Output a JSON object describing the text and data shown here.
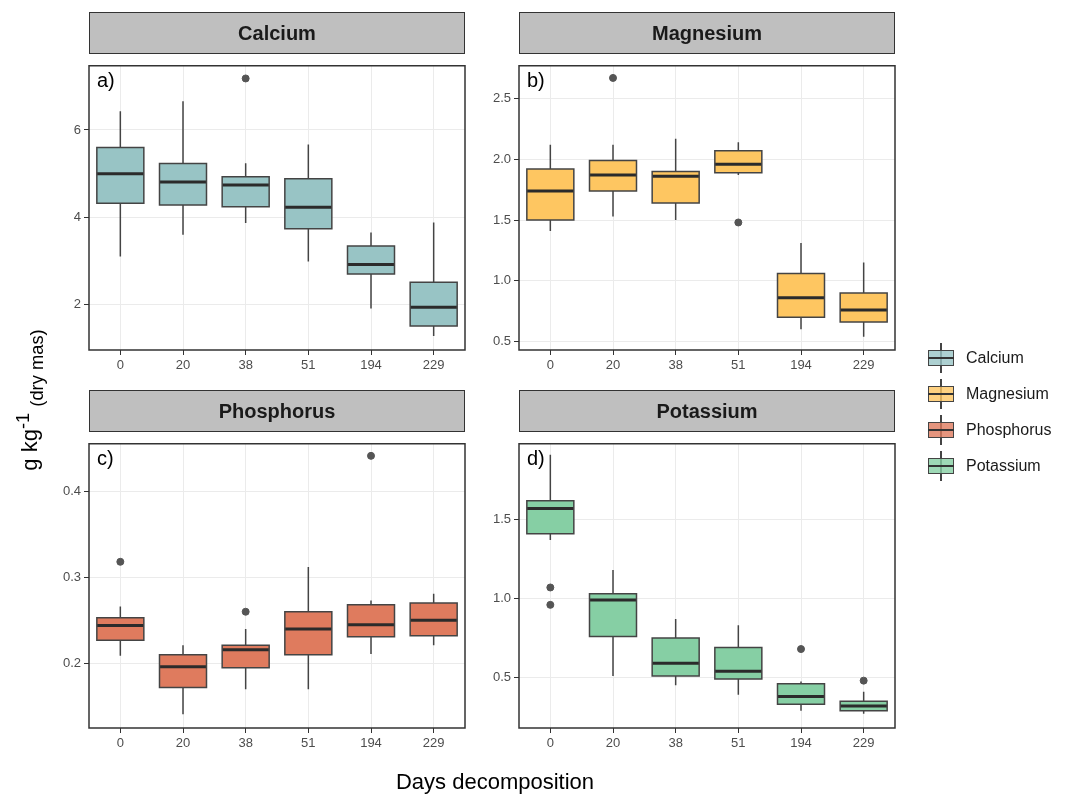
{
  "chart_data": [
    {
      "type": "box",
      "title": "Calcium",
      "annotations": [
        "a)"
      ],
      "ylabel": "g kg$^{-1}$ $_{(dry mas)}$",
      "legend": "right",
      "grid": true,
      "categories": [
        "0",
        "20",
        "38",
        "51",
        "194",
        "229"
      ],
      "ylim": [
        0.96,
        7.47
      ],
      "yticks": [
        2,
        4,
        6
      ],
      "series": [
        {
          "name": "Calcium",
          "color": "#98c4c5",
          "boxes": [
            {
              "low": 3.1,
              "q1": 4.32,
              "median": 5.0,
              "q3": 5.6,
              "high": 6.43
            },
            {
              "low": 3.6,
              "q1": 4.28,
              "median": 4.81,
              "q3": 5.23,
              "high": 6.66
            },
            {
              "low": 3.87,
              "q1": 4.24,
              "median": 4.74,
              "q3": 4.93,
              "high": 5.24,
              "outliers": [
                7.18
              ]
            },
            {
              "low": 2.99,
              "q1": 3.74,
              "median": 4.23,
              "q3": 4.88,
              "high": 5.67
            },
            {
              "low": 1.91,
              "q1": 2.7,
              "median": 2.92,
              "q3": 3.34,
              "high": 3.65
            },
            {
              "low": 1.28,
              "q1": 1.51,
              "median": 1.94,
              "q3": 2.51,
              "high": 3.88
            }
          ]
        }
      ]
    },
    {
      "type": "box",
      "title": "Magnesium",
      "annotations": [
        "b)"
      ],
      "legend": "right",
      "grid": true,
      "categories": [
        "0",
        "20",
        "38",
        "51",
        "194",
        "229"
      ],
      "ylim": [
        0.43,
        2.77
      ],
      "yticks": [
        {
          "value": 0.5,
          "label": "0.5"
        },
        {
          "value": 1,
          "label": "1.0"
        },
        {
          "value": 1.5,
          "label": "1.5"
        },
        {
          "value": 2,
          "label": "2.0"
        },
        {
          "value": 2.5,
          "label": "2.5"
        }
      ],
      "series": [
        {
          "name": "Magnesium",
          "color": "#fec661",
          "boxes": [
            {
              "low": 1.41,
              "q1": 1.5,
              "median": 1.74,
              "q3": 1.92,
              "high": 2.12
            },
            {
              "low": 1.53,
              "q1": 1.74,
              "median": 1.87,
              "q3": 1.99,
              "high": 2.12,
              "outliers": [
                2.67
              ]
            },
            {
              "low": 1.5,
              "q1": 1.64,
              "median": 1.86,
              "q3": 1.9,
              "high": 2.17
            },
            {
              "low": 1.87,
              "q1": 1.89,
              "median": 1.96,
              "q3": 2.07,
              "high": 2.14,
              "outliers": [
                1.48
              ]
            },
            {
              "low": 0.6,
              "q1": 0.7,
              "median": 0.86,
              "q3": 1.06,
              "high": 1.31
            },
            {
              "low": 0.54,
              "q1": 0.66,
              "median": 0.76,
              "q3": 0.9,
              "high": 1.15
            }
          ]
        }
      ]
    },
    {
      "type": "box",
      "title": "Phosphorus",
      "annotations": [
        "c)"
      ],
      "xlabel": "Days decomposition",
      "legend": "right",
      "grid": true,
      "categories": [
        "0",
        "20",
        "38",
        "51",
        "194",
        "229"
      ],
      "ylim": [
        0.125,
        0.455
      ],
      "yticks": [
        0.2,
        0.3,
        0.4
      ],
      "series": [
        {
          "name": "Phosphorus",
          "color": "#df7b5e",
          "boxes": [
            {
              "low": 0.209,
              "q1": 0.227,
              "median": 0.244,
              "q3": 0.253,
              "high": 0.266,
              "outliers": [
                0.318
              ]
            },
            {
              "low": 0.141,
              "q1": 0.172,
              "median": 0.196,
              "q3": 0.21,
              "high": 0.221
            },
            {
              "low": 0.17,
              "q1": 0.195,
              "median": 0.216,
              "q3": 0.221,
              "high": 0.24,
              "outliers": [
                0.26
              ]
            },
            {
              "low": 0.17,
              "q1": 0.21,
              "median": 0.24,
              "q3": 0.26,
              "high": 0.312
            },
            {
              "low": 0.211,
              "q1": 0.231,
              "median": 0.245,
              "q3": 0.268,
              "high": 0.273,
              "outliers": [
                0.441
              ]
            },
            {
              "low": 0.221,
              "q1": 0.232,
              "median": 0.25,
              "q3": 0.27,
              "high": 0.281
            }
          ]
        }
      ]
    },
    {
      "type": "box",
      "title": "Potassium",
      "annotations": [
        "d)"
      ],
      "legend": "right",
      "grid": true,
      "categories": [
        "0",
        "20",
        "38",
        "51",
        "194",
        "229"
      ],
      "ylim": [
        0.18,
        1.98
      ],
      "yticks": [
        {
          "value": 0.5,
          "label": "0.5"
        },
        {
          "value": 1,
          "label": "1.0"
        },
        {
          "value": 1.5,
          "label": "1.5"
        }
      ],
      "series": [
        {
          "name": "Potassium",
          "color": "#86cfa4",
          "boxes": [
            {
              "low": 1.37,
              "q1": 1.41,
              "median": 1.57,
              "q3": 1.62,
              "high": 1.91,
              "outliers": [
                1.07,
                0.96
              ]
            },
            {
              "low": 0.51,
              "q1": 0.76,
              "median": 0.99,
              "q3": 1.03,
              "high": 1.18
            },
            {
              "low": 0.45,
              "q1": 0.51,
              "median": 0.59,
              "q3": 0.75,
              "high": 0.87
            },
            {
              "low": 0.39,
              "q1": 0.49,
              "median": 0.54,
              "q3": 0.69,
              "high": 0.83
            },
            {
              "low": 0.29,
              "q1": 0.33,
              "median": 0.38,
              "q3": 0.46,
              "high": 0.475,
              "outliers": [
                0.68
              ]
            },
            {
              "low": 0.27,
              "q1": 0.29,
              "median": 0.32,
              "q3": 0.35,
              "high": 0.41,
              "outliers": [
                0.48
              ]
            }
          ]
        }
      ]
    }
  ]
}
